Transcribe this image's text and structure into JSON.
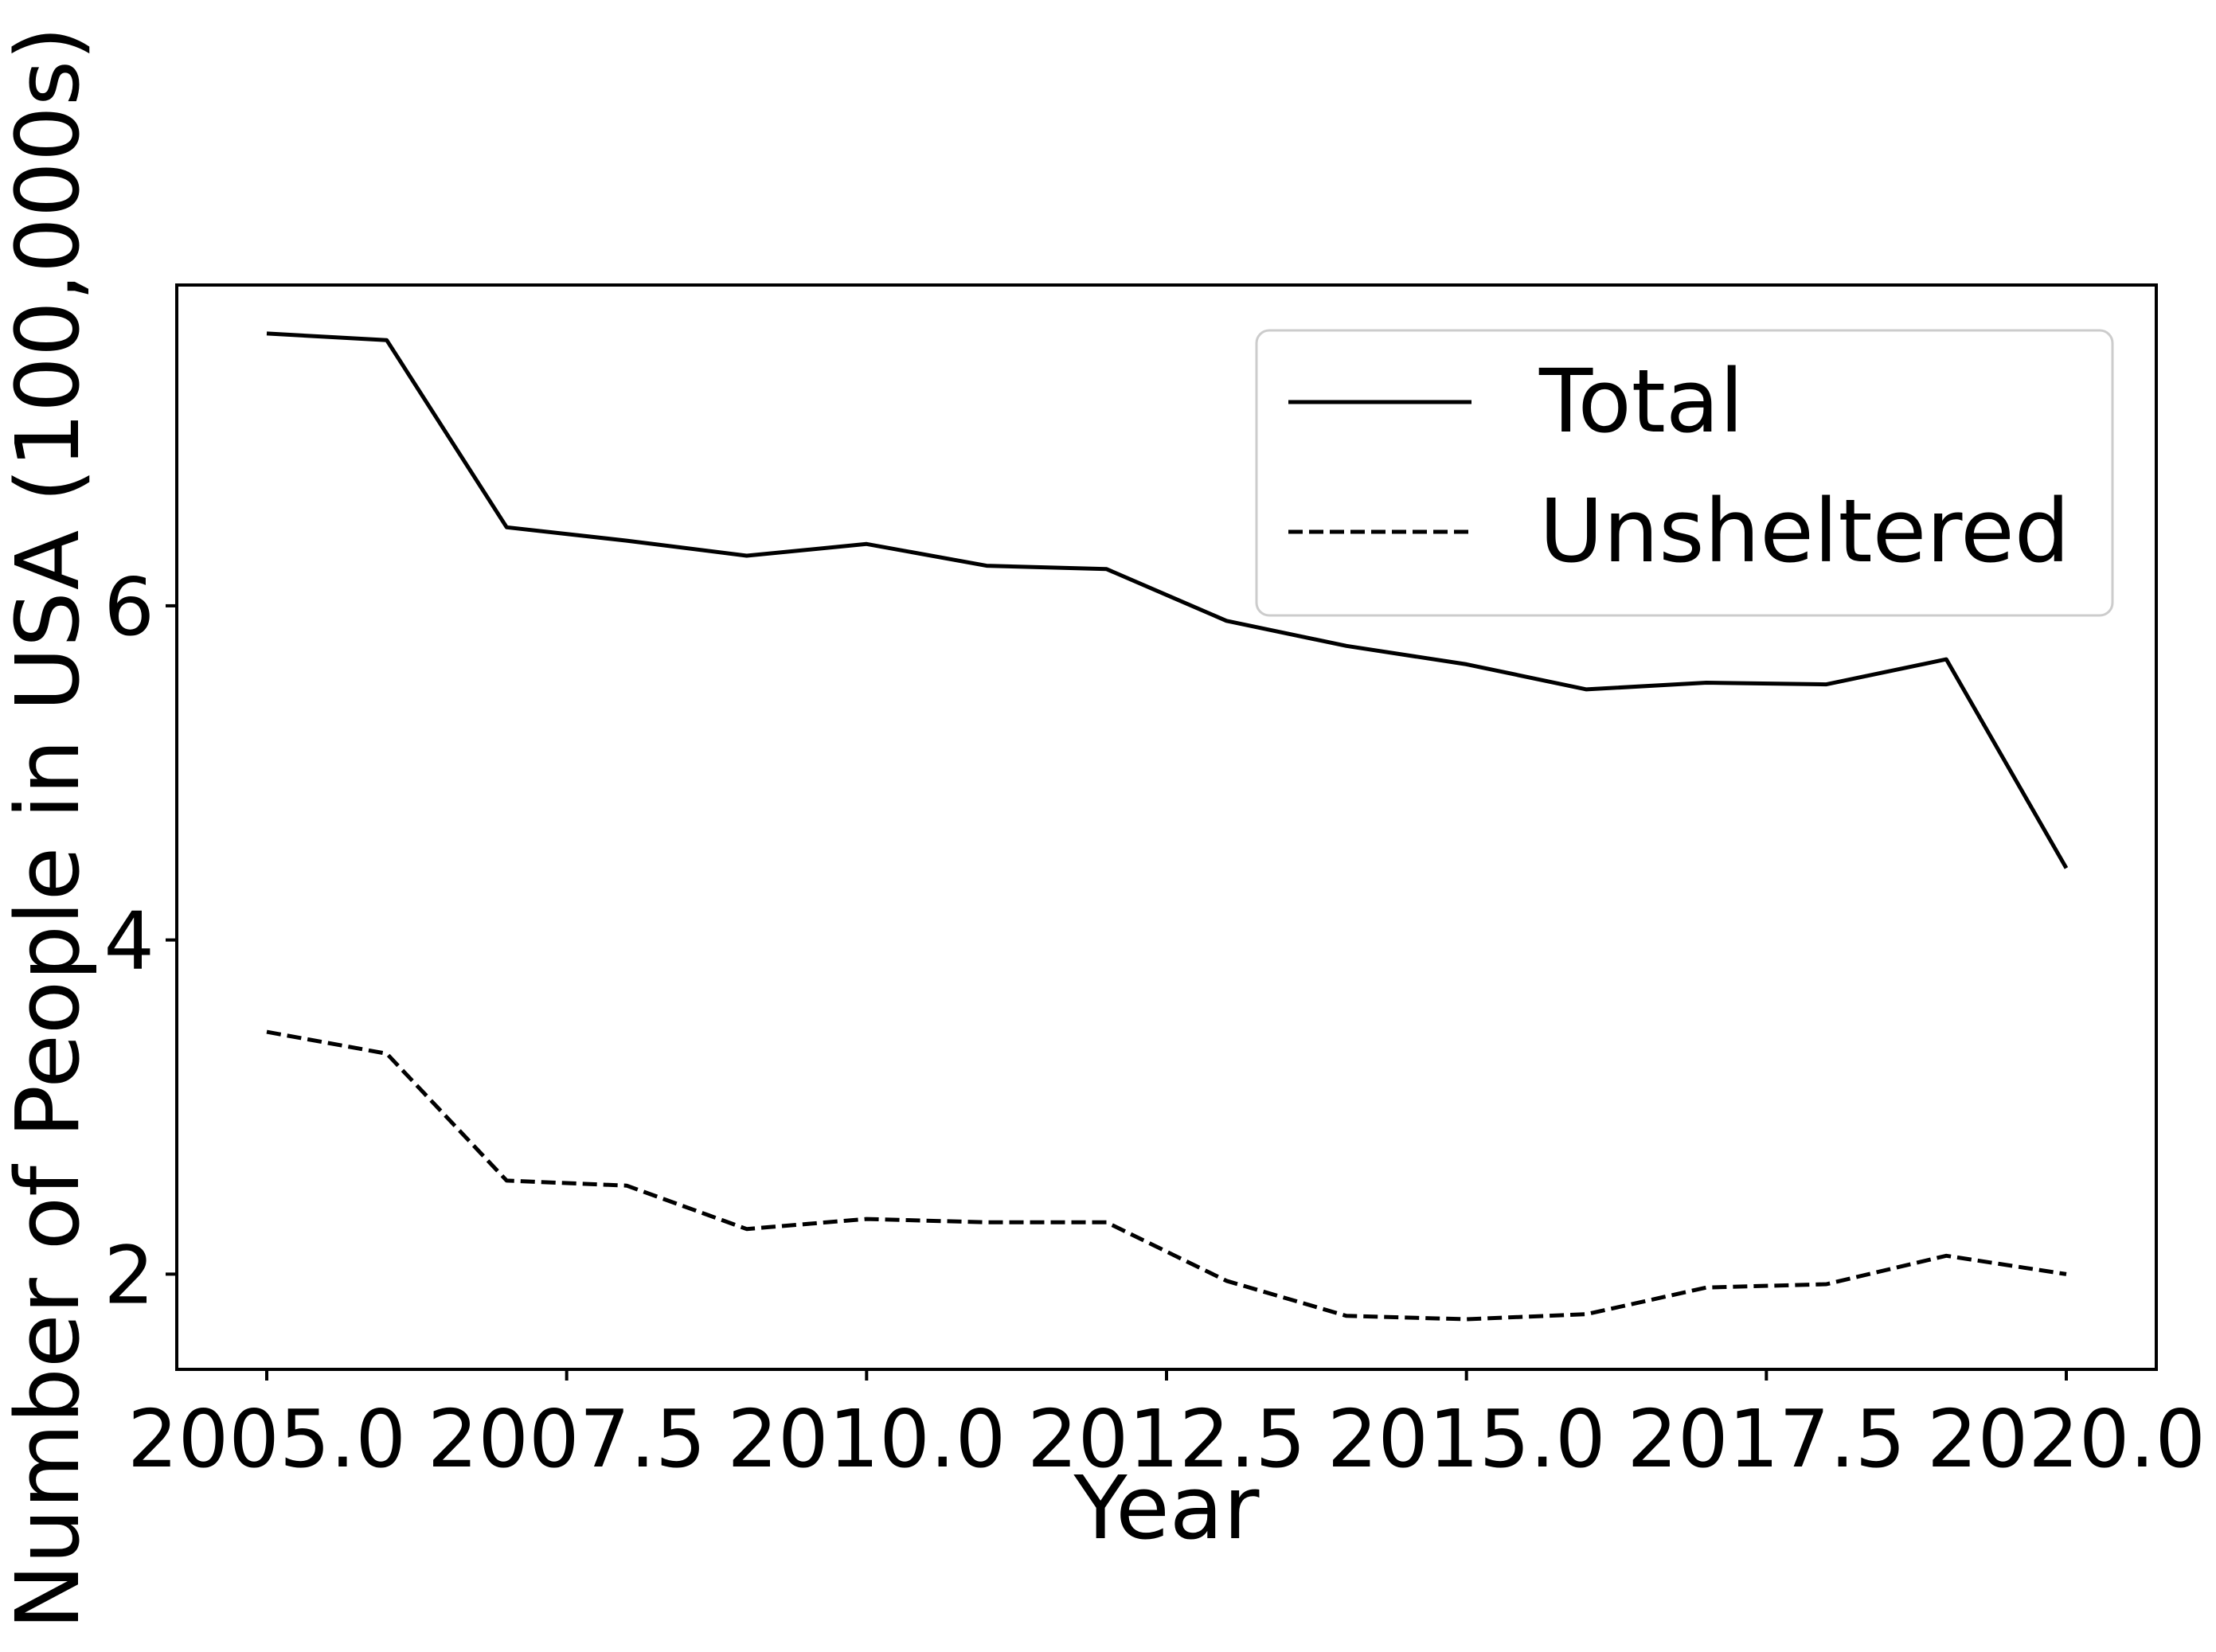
{
  "chart_data": {
    "type": "line",
    "title": "",
    "xlabel": "Year",
    "ylabel": "Number of People in USA (100,000s)",
    "xlim": [
      2004.25,
      2020.75
    ],
    "ylim": [
      1.43,
      7.92
    ],
    "xticks": [
      2005.0,
      2007.5,
      2010.0,
      2012.5,
      2015.0,
      2017.5,
      2020.0
    ],
    "xtick_labels": [
      "2005.0",
      "2007.5",
      "2010.0",
      "2012.5",
      "2015.0",
      "2017.5",
      "2020.0"
    ],
    "yticks": [
      2,
      4,
      6
    ],
    "ytick_labels": [
      "2",
      "4",
      "6"
    ],
    "grid": false,
    "legend_position": "top-right",
    "x": [
      2005,
      2006,
      2007,
      2008,
      2009,
      2010,
      2011,
      2012,
      2013,
      2014,
      2015,
      2016,
      2017,
      2018,
      2019,
      2020
    ],
    "series": [
      {
        "name": "Total",
        "style": "solid",
        "color": "#000000",
        "values": [
          7.63,
          7.59,
          6.47,
          6.39,
          6.3,
          6.37,
          6.24,
          6.22,
          5.91,
          5.76,
          5.65,
          5.5,
          5.54,
          5.53,
          5.68,
          4.43
        ]
      },
      {
        "name": "Unsheltered",
        "style": "dashed",
        "color": "#000000",
        "values": [
          3.45,
          3.32,
          2.56,
          2.53,
          2.27,
          2.33,
          2.31,
          2.31,
          1.96,
          1.75,
          1.73,
          1.76,
          1.92,
          1.94,
          2.11,
          2.0
        ]
      }
    ]
  }
}
